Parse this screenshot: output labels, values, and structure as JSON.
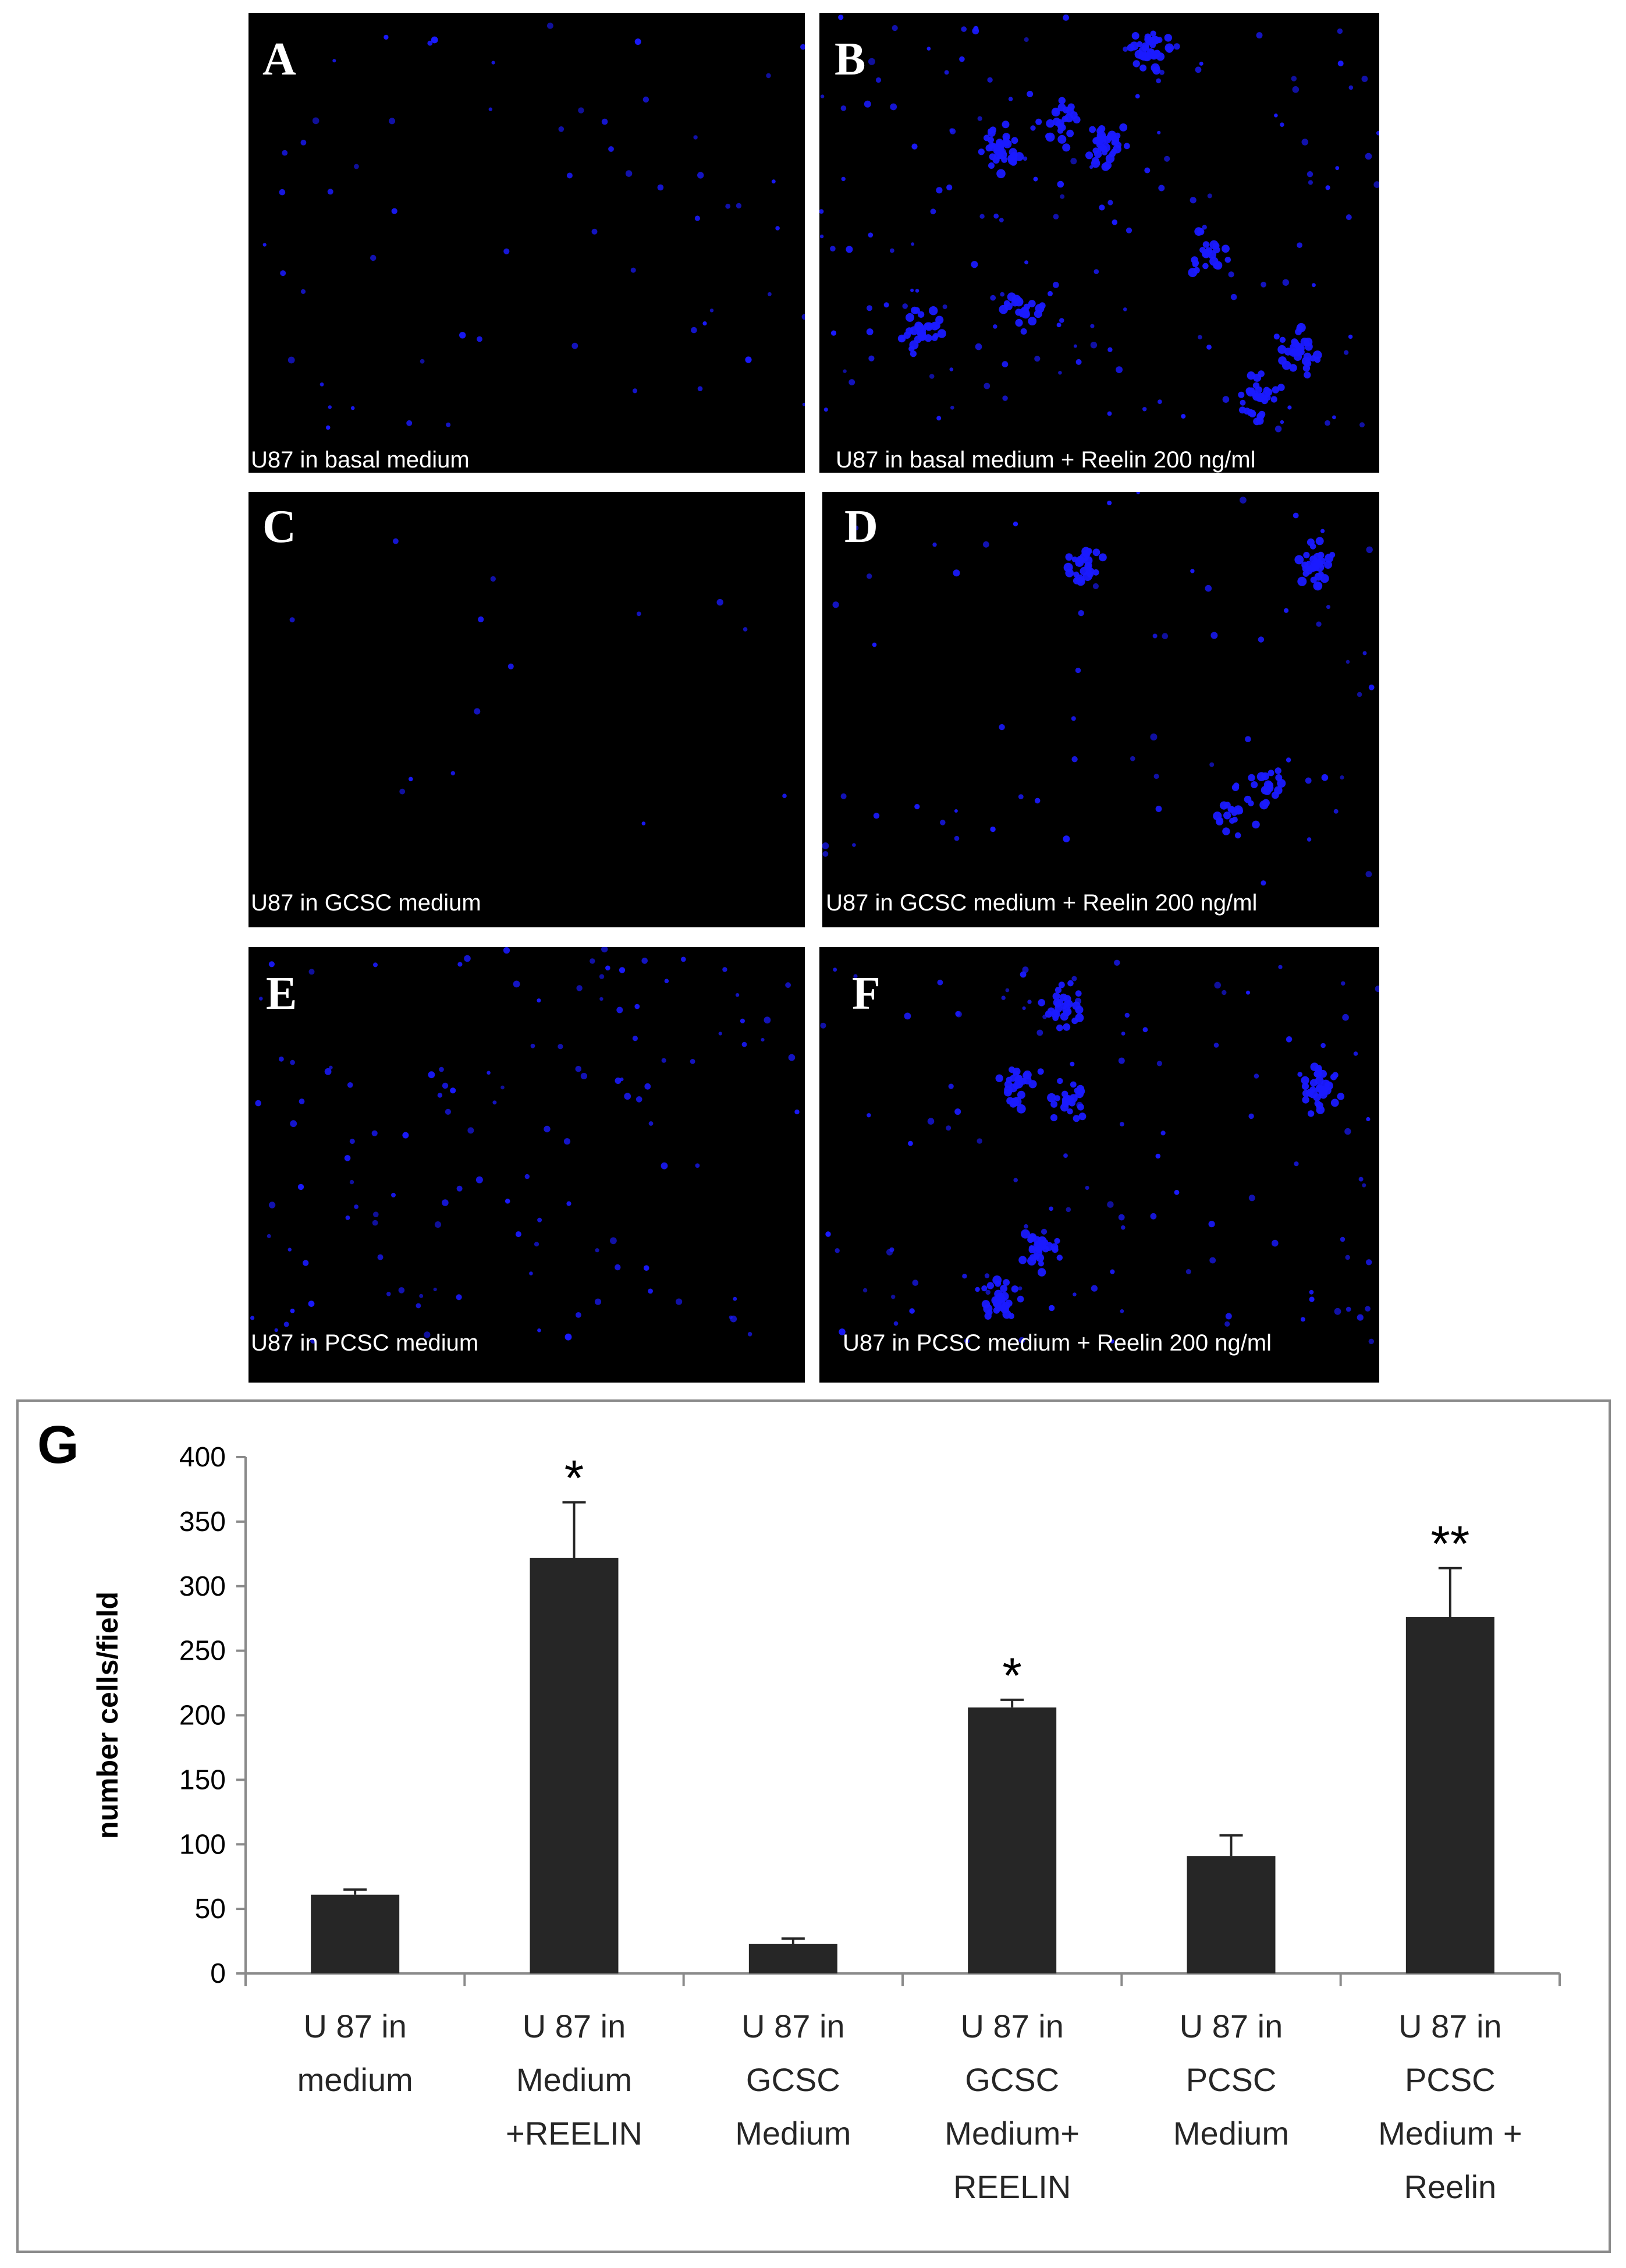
{
  "panels": [
    {
      "letter": "A",
      "caption": "U87 in basal medium",
      "density": 60,
      "clusters": 0
    },
    {
      "letter": "B",
      "caption": "U87 in basal medium + Reelin 200 ng/ml",
      "density": 150,
      "clusters": 9
    },
    {
      "letter": "C",
      "caption": "U87 in GCSC medium",
      "density": 14,
      "clusters": 0
    },
    {
      "letter": "D",
      "caption": "U87 in GCSC medium + Reelin 200 ng/ml",
      "density": 60,
      "clusters": 4
    },
    {
      "letter": "E",
      "caption": "U87 in PCSC medium",
      "density": 120,
      "clusters": 0
    },
    {
      "letter": "F",
      "caption": "U87 in PCSC medium + Reelin 200 ng/ml",
      "density": 110,
      "clusters": 6
    }
  ],
  "chart": {
    "panel_letter": "G"
  },
  "chart_data": {
    "type": "bar",
    "categories": [
      [
        "U 87 in",
        "medium"
      ],
      [
        "U 87 in",
        "Medium",
        "+REELIN"
      ],
      [
        "U 87 in",
        "GCSC",
        "Medium"
      ],
      [
        "U 87 in",
        "GCSC",
        "Medium+",
        "REELIN"
      ],
      [
        "U 87 in",
        "PCSC",
        "Medium"
      ],
      [
        "U 87 in",
        "PCSC",
        "Medium +",
        "Reelin"
      ]
    ],
    "values": [
      61,
      322,
      23,
      206,
      91,
      276
    ],
    "errors": [
      4,
      43,
      4,
      6,
      16,
      38
    ],
    "significance": [
      "",
      "*",
      "",
      "*",
      "",
      "**"
    ],
    "ylabel": "number cells/field",
    "ylim": [
      0,
      400
    ],
    "yticks": [
      0,
      50,
      100,
      150,
      200,
      250,
      300,
      350,
      400
    ],
    "colors": {
      "bar": "#262626",
      "cell": "#1a1aff"
    },
    "grid": false
  }
}
